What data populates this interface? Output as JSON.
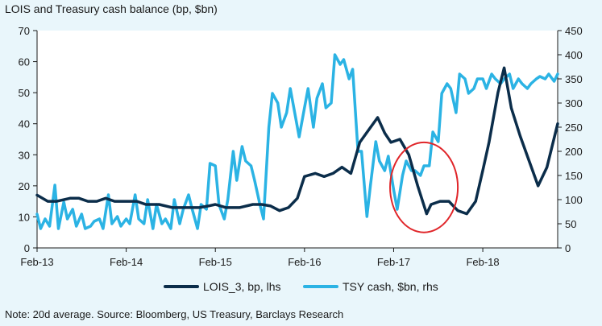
{
  "title": "LOIS and Treasury cash balance (bp, $bn)",
  "footnote": "Note: 20d average. Source: Bloomberg, US Treasury, Barclays Research",
  "colors": {
    "lois": "#0b2d4a",
    "tsy": "#2bb3e4",
    "circle": "#e0262a"
  },
  "chart_data": {
    "type": "line",
    "title": "LOIS and Treasury cash balance (bp, $bn)",
    "x_ticks": [
      "Feb-13",
      "Feb-14",
      "Feb-15",
      "Feb-16",
      "Feb-17",
      "Feb-18"
    ],
    "x_tick_values": [
      2013.08,
      2014.08,
      2015.08,
      2016.08,
      2017.08,
      2018.08
    ],
    "xlim": [
      2013.08,
      2018.92
    ],
    "y_left": {
      "range": [
        0,
        70
      ],
      "ticks": [
        0,
        10,
        20,
        30,
        40,
        50,
        60,
        70
      ]
    },
    "y_right": {
      "range": [
        0,
        450
      ],
      "ticks": [
        0,
        50,
        100,
        150,
        200,
        250,
        300,
        350,
        400,
        450
      ]
    },
    "legend_position": "bottom",
    "series": [
      {
        "name": "LOIS_3, bp, lhs",
        "axis": "left",
        "x": [
          2013.08,
          2013.2,
          2013.3,
          2013.45,
          2013.55,
          2013.65,
          2013.75,
          2013.85,
          2013.95,
          2014.08,
          2014.2,
          2014.3,
          2014.45,
          2014.6,
          2014.75,
          2014.9,
          2015.0,
          2015.08,
          2015.2,
          2015.35,
          2015.5,
          2015.6,
          2015.7,
          2015.8,
          2015.9,
          2016.0,
          2016.08,
          2016.2,
          2016.3,
          2016.4,
          2016.5,
          2016.6,
          2016.7,
          2016.8,
          2016.9,
          2016.98,
          2017.05,
          2017.15,
          2017.25,
          2017.35,
          2017.45,
          2017.5,
          2017.6,
          2017.7,
          2017.8,
          2017.9,
          2018.0,
          2018.08,
          2018.15,
          2018.25,
          2018.32,
          2018.4,
          2018.5,
          2018.6,
          2018.7,
          2018.8,
          2018.92
        ],
        "y": [
          17,
          15,
          15,
          16,
          16,
          15,
          15,
          16,
          15,
          15,
          15,
          14,
          14,
          13,
          13,
          13,
          13.5,
          14,
          13,
          13,
          14,
          14,
          13.5,
          12,
          13,
          16,
          23,
          24,
          23,
          24,
          26,
          24,
          34,
          38,
          42,
          37,
          34,
          35,
          30,
          20,
          11,
          14,
          15,
          15,
          12,
          11,
          15,
          25,
          34,
          50,
          58,
          45,
          36,
          28,
          20,
          26,
          40
        ]
      },
      {
        "name": "TSY cash, $bn, rhs",
        "axis": "right",
        "x": [
          2013.08,
          2013.12,
          2013.17,
          2013.22,
          2013.28,
          2013.32,
          2013.38,
          2013.42,
          2013.48,
          2013.52,
          2013.58,
          2013.62,
          2013.68,
          2013.72,
          2013.78,
          2013.82,
          2013.88,
          2013.92,
          2013.98,
          2014.02,
          2014.08,
          2014.12,
          2014.18,
          2014.22,
          2014.28,
          2014.32,
          2014.38,
          2014.42,
          2014.48,
          2014.52,
          2014.58,
          2014.62,
          2014.68,
          2014.72,
          2014.78,
          2014.82,
          2014.88,
          2014.92,
          2014.98,
          2015.02,
          2015.08,
          2015.12,
          2015.18,
          2015.22,
          2015.28,
          2015.32,
          2015.38,
          2015.42,
          2015.48,
          2015.52,
          2015.58,
          2015.62,
          2015.68,
          2015.72,
          2015.78,
          2015.82,
          2015.88,
          2015.92,
          2015.98,
          2016.02,
          2016.08,
          2016.12,
          2016.18,
          2016.22,
          2016.28,
          2016.32,
          2016.38,
          2016.42,
          2016.48,
          2016.52,
          2016.58,
          2016.62,
          2016.68,
          2016.72,
          2016.78,
          2016.82,
          2016.88,
          2016.92,
          2016.98,
          2017.02,
          2017.08,
          2017.12,
          2017.18,
          2017.22,
          2017.28,
          2017.32,
          2017.38,
          2017.42,
          2017.48,
          2017.52,
          2017.58,
          2017.62,
          2017.68,
          2017.72,
          2017.78,
          2017.82,
          2017.88,
          2017.92,
          2017.98,
          2018.02,
          2018.08,
          2018.12,
          2018.18,
          2018.22,
          2018.28,
          2018.32,
          2018.38,
          2018.42,
          2018.48,
          2018.52,
          2018.58,
          2018.62,
          2018.68,
          2018.72,
          2018.78,
          2018.82,
          2018.88,
          2018.92
        ],
        "y": [
          70,
          40,
          60,
          45,
          130,
          40,
          95,
          60,
          80,
          45,
          70,
          40,
          45,
          55,
          60,
          40,
          110,
          50,
          65,
          45,
          60,
          50,
          110,
          60,
          50,
          100,
          40,
          90,
          50,
          60,
          40,
          100,
          50,
          80,
          110,
          80,
          40,
          90,
          80,
          175,
          170,
          90,
          60,
          100,
          200,
          140,
          210,
          180,
          170,
          140,
          90,
          60,
          250,
          320,
          300,
          250,
          280,
          330,
          270,
          230,
          290,
          330,
          250,
          310,
          340,
          290,
          300,
          400,
          380,
          390,
          350,
          370,
          200,
          200,
          65,
          130,
          220,
          180,
          160,
          190,
          120,
          80,
          150,
          180,
          160,
          160,
          150,
          170,
          170,
          240,
          220,
          320,
          340,
          330,
          280,
          360,
          350,
          320,
          330,
          350,
          350,
          330,
          360,
          350,
          340,
          350,
          360,
          330,
          350,
          340,
          330,
          340,
          350,
          355,
          350,
          360,
          345,
          360
        ]
      }
    ],
    "annotation": {
      "shape": "ellipse",
      "x_center": 2017.42,
      "y_center_left": 19.5,
      "x_radius": 0.38,
      "y_radius_left": 14.5
    }
  }
}
